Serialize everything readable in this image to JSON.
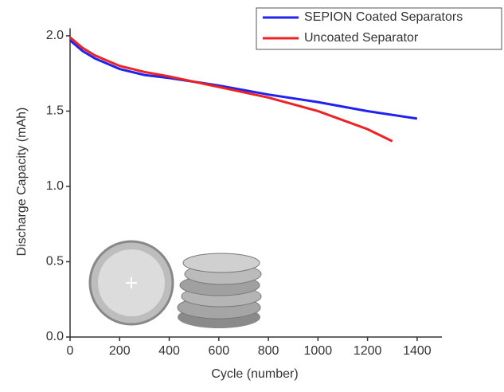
{
  "chart_data": {
    "type": "line",
    "x_label": "Cycle (number)",
    "y_label": "Discharge Capacity (mAh)",
    "xlim": [
      0,
      1500
    ],
    "ylim": [
      0,
      2.05
    ],
    "xticks": [
      0,
      200,
      400,
      600,
      800,
      1000,
      1200,
      1400
    ],
    "yticks": [
      {
        "value": 0,
        "label": "0.0"
      },
      0.5,
      {
        "value": 1,
        "label": "1.0"
      },
      1.5,
      {
        "value": 2,
        "label": "2.0"
      }
    ],
    "legend": "upper right",
    "series": [
      {
        "name": "SEPION Coated Separators",
        "color": "#2222ee",
        "x": [
          0,
          50,
          100,
          200,
          300,
          400,
          600,
          800,
          1000,
          1200,
          1400
        ],
        "values": [
          1.97,
          1.9,
          1.85,
          1.78,
          1.74,
          1.72,
          1.67,
          1.61,
          1.56,
          1.5,
          1.45
        ]
      },
      {
        "name": "Uncoated Separator",
        "color": "#ee2222",
        "x": [
          0,
          50,
          100,
          200,
          300,
          400,
          600,
          800,
          1000,
          1200,
          1300
        ],
        "values": [
          1.99,
          1.92,
          1.87,
          1.8,
          1.76,
          1.73,
          1.66,
          1.59,
          1.5,
          1.38,
          1.3
        ]
      }
    ]
  }
}
